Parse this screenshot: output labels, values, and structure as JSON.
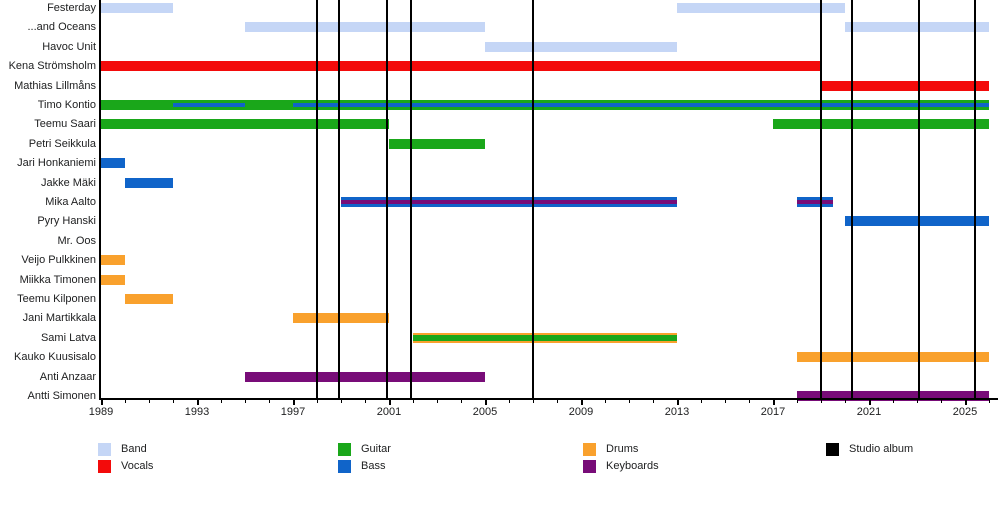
{
  "chart_data": {
    "type": "timeline-gantt",
    "description": "Band membership timeline with instrument roles and studio album release markers",
    "x_axis": {
      "unit": "year",
      "range": [
        1989,
        2026
      ],
      "major_ticks": [
        1989,
        1993,
        1997,
        2001,
        2005,
        2009,
        2013,
        2017,
        2021,
        2025
      ],
      "major_tick_labels": [
        "1989",
        "1993",
        "1997",
        "2001",
        "2005",
        "2009",
        "2013",
        "2017",
        "2021",
        "2025"
      ],
      "minor_tick_increment": 1
    },
    "palette": {
      "band": "#c5d6f6",
      "vocals": "#f30b0b",
      "guitar": "#1aa71a",
      "bass": "#1064c9",
      "drums": "#f9a12d",
      "keyboards": "#780c78",
      "album": "#000000"
    },
    "album_line_years": [
      1998.0,
      1998.9,
      2000.9,
      2001.9,
      2007.0,
      2019.0,
      2020.3,
      2023.1,
      2025.4
    ],
    "legend": {
      "columns": [
        [
          {
            "label": "Band",
            "role": "band"
          },
          {
            "label": "Vocals",
            "role": "vocals"
          }
        ],
        [
          {
            "label": "Guitar",
            "role": "guitar"
          },
          {
            "label": "Bass",
            "role": "bass"
          }
        ],
        [
          {
            "label": "Drums",
            "role": "drums"
          },
          {
            "label": "Keyboards",
            "role": "keyboards"
          }
        ],
        [
          {
            "label": "Studio album",
            "role": "album"
          }
        ]
      ]
    },
    "members": [
      {
        "name": "Festerday",
        "bars": [
          {
            "role": "band",
            "start": 1989,
            "end": 1992
          },
          {
            "role": "band",
            "start": 2013,
            "end": 2020
          }
        ],
        "stripes": []
      },
      {
        "name": "...and Oceans",
        "bars": [
          {
            "role": "band",
            "start": 1995,
            "end": 2005
          },
          {
            "role": "band",
            "start": 2020,
            "end": 2026
          }
        ],
        "stripes": []
      },
      {
        "name": "Havoc Unit",
        "bars": [
          {
            "role": "band",
            "start": 2005,
            "end": 2013
          }
        ],
        "stripes": []
      },
      {
        "name": "Kena Strömsholm",
        "bars": [
          {
            "role": "vocals",
            "start": 1989,
            "end": 2019
          }
        ],
        "stripes": []
      },
      {
        "name": "Mathias Lillmåns",
        "bars": [
          {
            "role": "vocals",
            "start": 2019,
            "end": 2026
          }
        ],
        "stripes": []
      },
      {
        "name": "Timo Kontio",
        "bars": [
          {
            "role": "guitar",
            "start": 1989,
            "end": 2026
          }
        ],
        "stripes": [
          {
            "role": "bass",
            "start": 1992,
            "end": 1995,
            "thick": false
          },
          {
            "role": "bass",
            "start": 1997,
            "end": 2026,
            "thick": false
          }
        ]
      },
      {
        "name": "Teemu Saari",
        "bars": [
          {
            "role": "guitar",
            "start": 1989,
            "end": 2001
          },
          {
            "role": "guitar",
            "start": 2017,
            "end": 2026
          }
        ],
        "stripes": []
      },
      {
        "name": "Petri Seikkula",
        "bars": [
          {
            "role": "guitar",
            "start": 2001,
            "end": 2005
          }
        ],
        "stripes": []
      },
      {
        "name": "Jari Honkaniemi",
        "bars": [
          {
            "role": "bass",
            "start": 1989,
            "end": 1990
          }
        ],
        "stripes": []
      },
      {
        "name": "Jakke Mäki",
        "bars": [
          {
            "role": "bass",
            "start": 1990,
            "end": 1992
          }
        ],
        "stripes": []
      },
      {
        "name": "Mika Aalto",
        "bars": [
          {
            "role": "bass",
            "start": 1999,
            "end": 2013
          },
          {
            "role": "bass",
            "start": 2018,
            "end": 2019.5
          }
        ],
        "stripes": [
          {
            "role": "keyboards",
            "start": 1999,
            "end": 2013,
            "thick": false
          },
          {
            "role": "keyboards",
            "start": 2018,
            "end": 2019.5,
            "thick": false
          }
        ]
      },
      {
        "name": "Pyry Hanski",
        "bars": [
          {
            "role": "bass",
            "start": 2020,
            "end": 2026
          }
        ],
        "stripes": []
      },
      {
        "name": "Mr. Oos",
        "bars": [],
        "stripes": []
      },
      {
        "name": "Veijo Pulkkinen",
        "bars": [
          {
            "role": "drums",
            "start": 1989,
            "end": 1990
          }
        ],
        "stripes": []
      },
      {
        "name": "Miikka Timonen",
        "bars": [
          {
            "role": "drums",
            "start": 1989,
            "end": 1990
          }
        ],
        "stripes": []
      },
      {
        "name": "Teemu Kilponen",
        "bars": [
          {
            "role": "drums",
            "start": 1990,
            "end": 1992
          }
        ],
        "stripes": []
      },
      {
        "name": "Jani Martikkala",
        "bars": [
          {
            "role": "drums",
            "start": 1997,
            "end": 2001
          }
        ],
        "stripes": []
      },
      {
        "name": "Sami Latva",
        "bars": [
          {
            "role": "drums",
            "start": 2002,
            "end": 2013
          }
        ],
        "stripes": [
          {
            "role": "guitar",
            "start": 2002,
            "end": 2013,
            "thick": true
          }
        ]
      },
      {
        "name": "Kauko Kuusisalo",
        "bars": [
          {
            "role": "drums",
            "start": 2018,
            "end": 2026
          }
        ],
        "stripes": []
      },
      {
        "name": "Anti Anzaar",
        "bars": [
          {
            "role": "keyboards",
            "start": 1995,
            "end": 2005
          }
        ],
        "stripes": []
      },
      {
        "name": "Antti Simonen",
        "bars": [
          {
            "role": "keyboards",
            "start": 2018,
            "end": 2026
          }
        ],
        "stripes": []
      }
    ]
  }
}
